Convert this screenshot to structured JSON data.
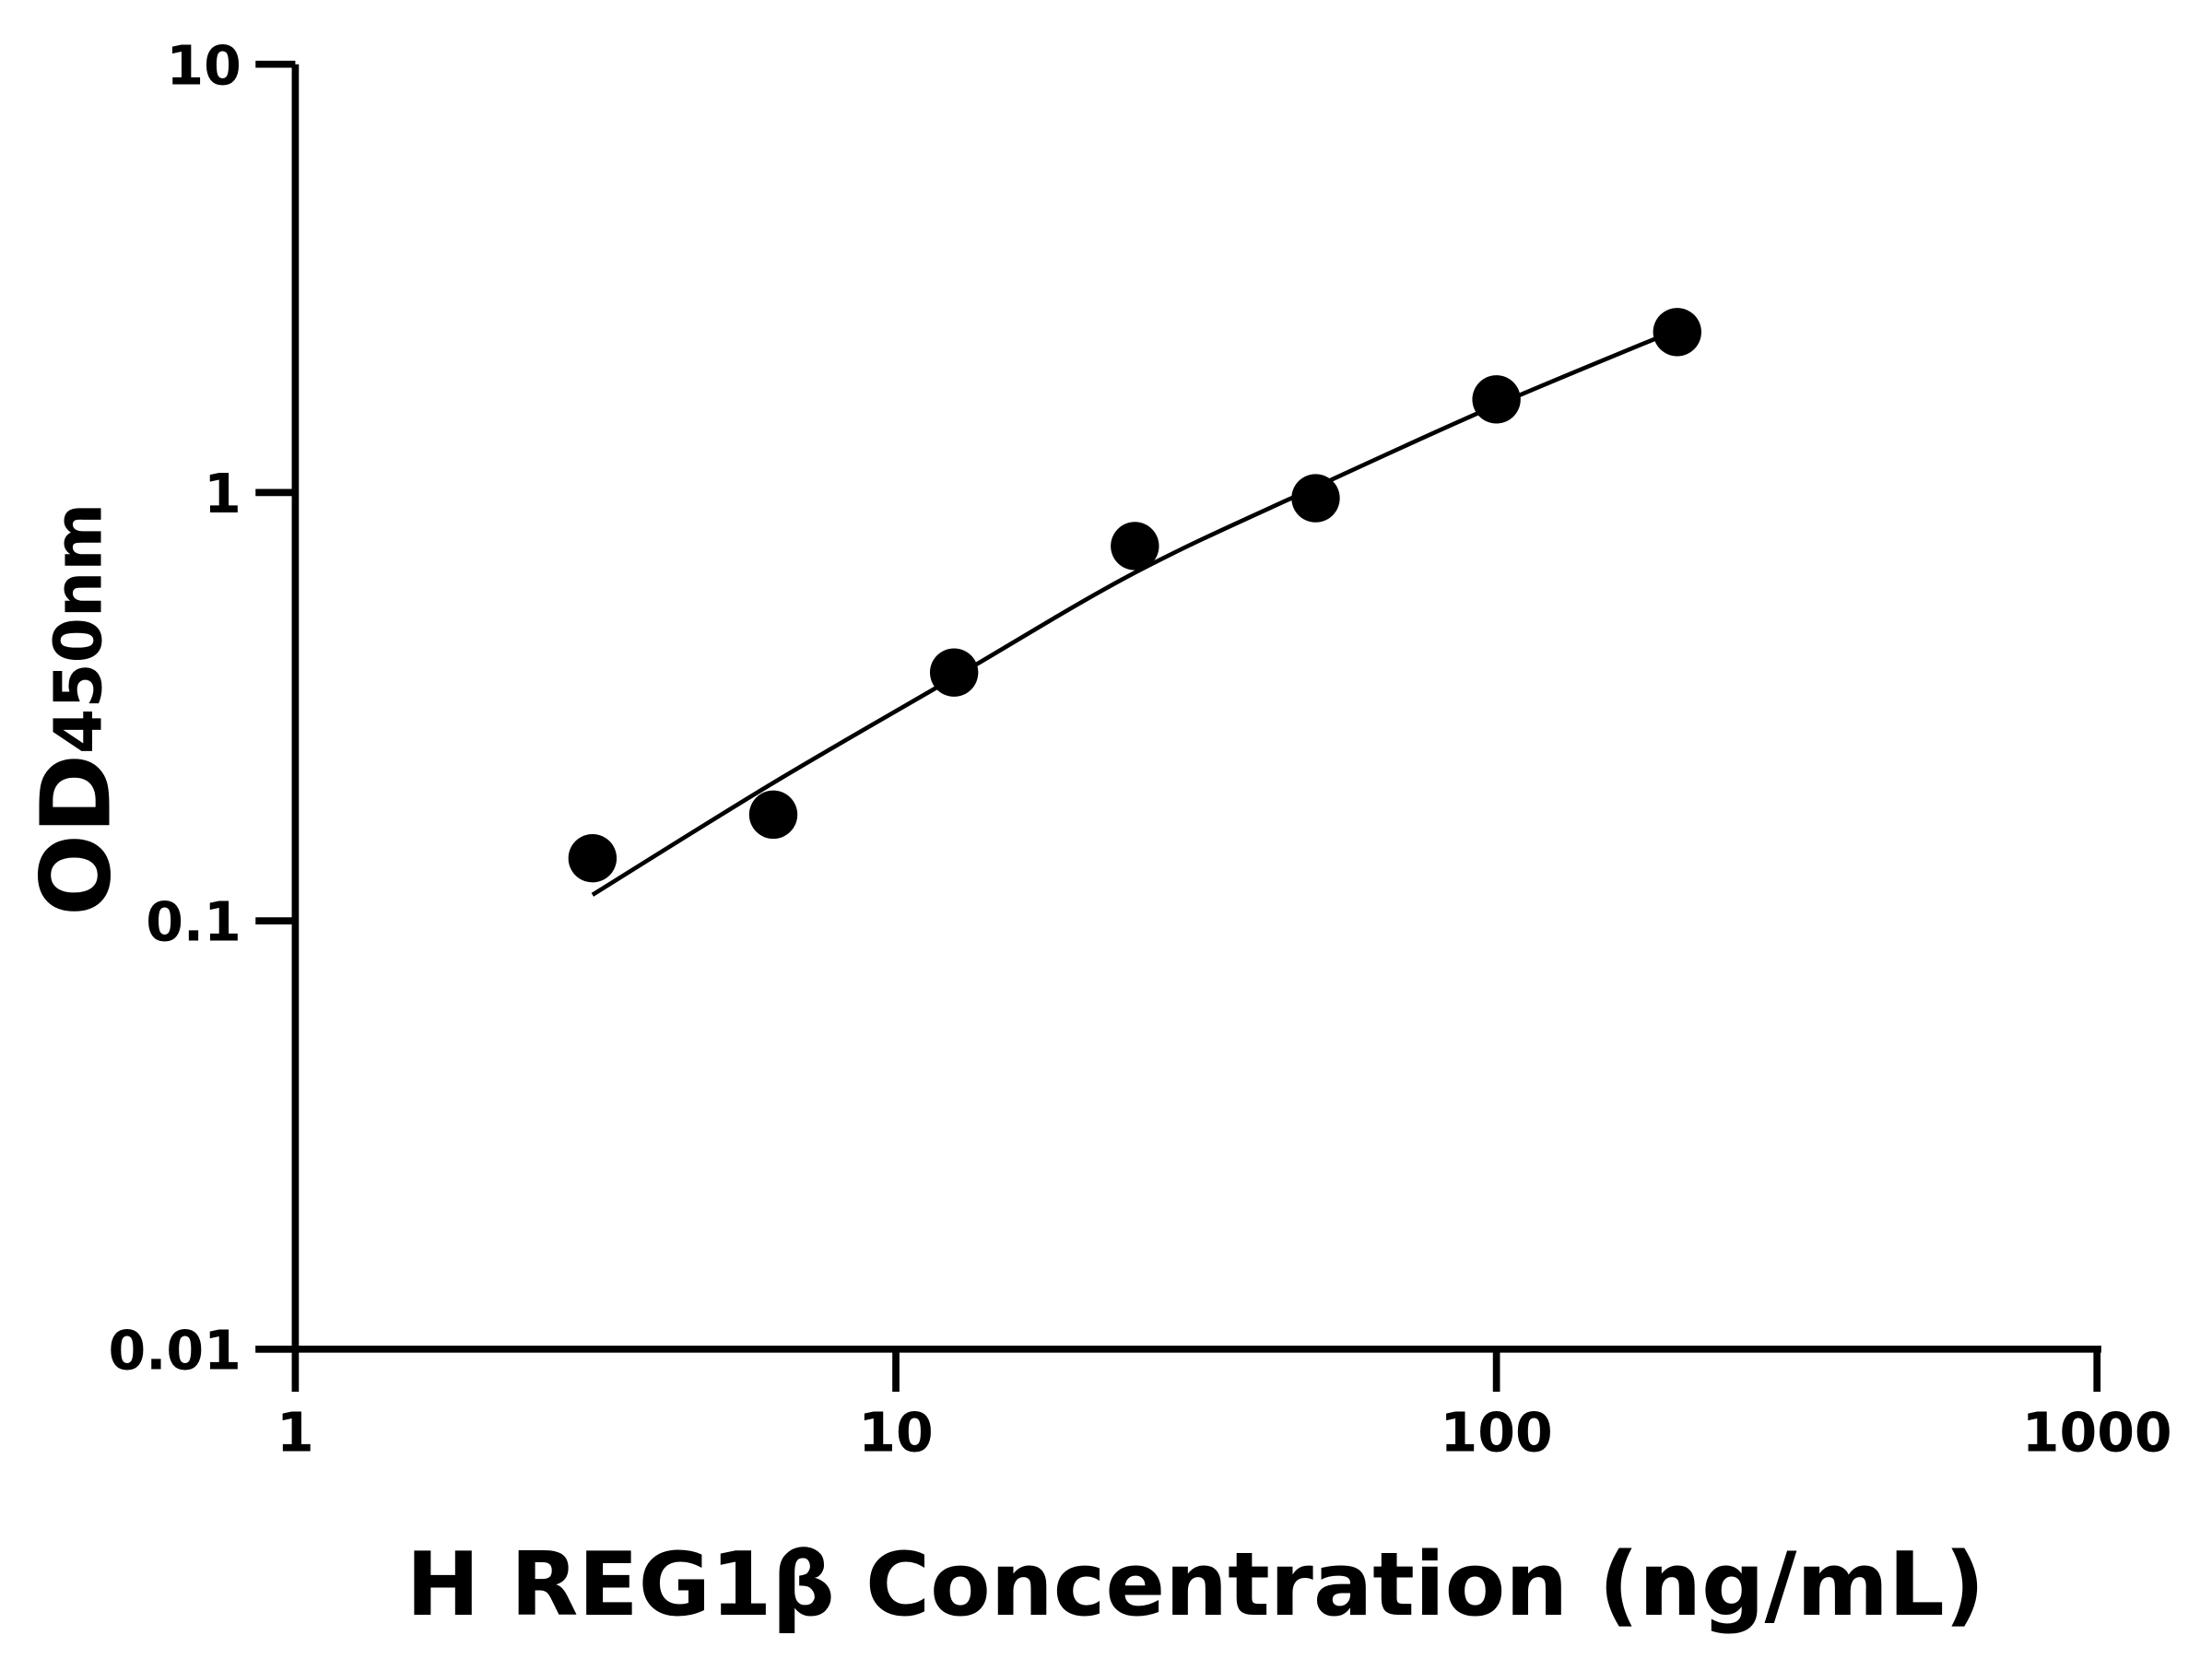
{
  "chart_data": {
    "type": "scatter",
    "title": "",
    "xlabel": "H REG1β Concentration (ng/mL)",
    "ylabel": "OD",
    "ylabel_subscript": "450nm",
    "xscale": "log",
    "yscale": "log",
    "xlim": [
      1,
      1000
    ],
    "ylim": [
      0.01,
      10
    ],
    "xticks": [
      {
        "value": 1,
        "label": "1"
      },
      {
        "value": 10,
        "label": "10"
      },
      {
        "value": 100,
        "label": "100"
      },
      {
        "value": 1000,
        "label": "1000"
      }
    ],
    "yticks": [
      {
        "value": 0.01,
        "label": "0.01"
      },
      {
        "value": 0.1,
        "label": "0.1"
      },
      {
        "value": 1,
        "label": "1"
      },
      {
        "value": 10,
        "label": "10"
      }
    ],
    "grid": false,
    "points": [
      {
        "x": 3.125,
        "y": 0.14
      },
      {
        "x": 6.25,
        "y": 0.177
      },
      {
        "x": 12.5,
        "y": 0.38
      },
      {
        "x": 25,
        "y": 0.75
      },
      {
        "x": 50,
        "y": 0.97
      },
      {
        "x": 100,
        "y": 1.65
      },
      {
        "x": 200,
        "y": 2.37
      }
    ],
    "fit_curve": [
      {
        "x": 3.125,
        "y": 0.115
      },
      {
        "x": 6.25,
        "y": 0.21
      },
      {
        "x": 12.5,
        "y": 0.37
      },
      {
        "x": 25,
        "y": 0.65
      },
      {
        "x": 50,
        "y": 1.03
      },
      {
        "x": 100,
        "y": 1.6
      },
      {
        "x": 200,
        "y": 2.4
      }
    ],
    "colors": {
      "points": "#000000",
      "curve": "#000000",
      "axes": "#000000"
    }
  }
}
